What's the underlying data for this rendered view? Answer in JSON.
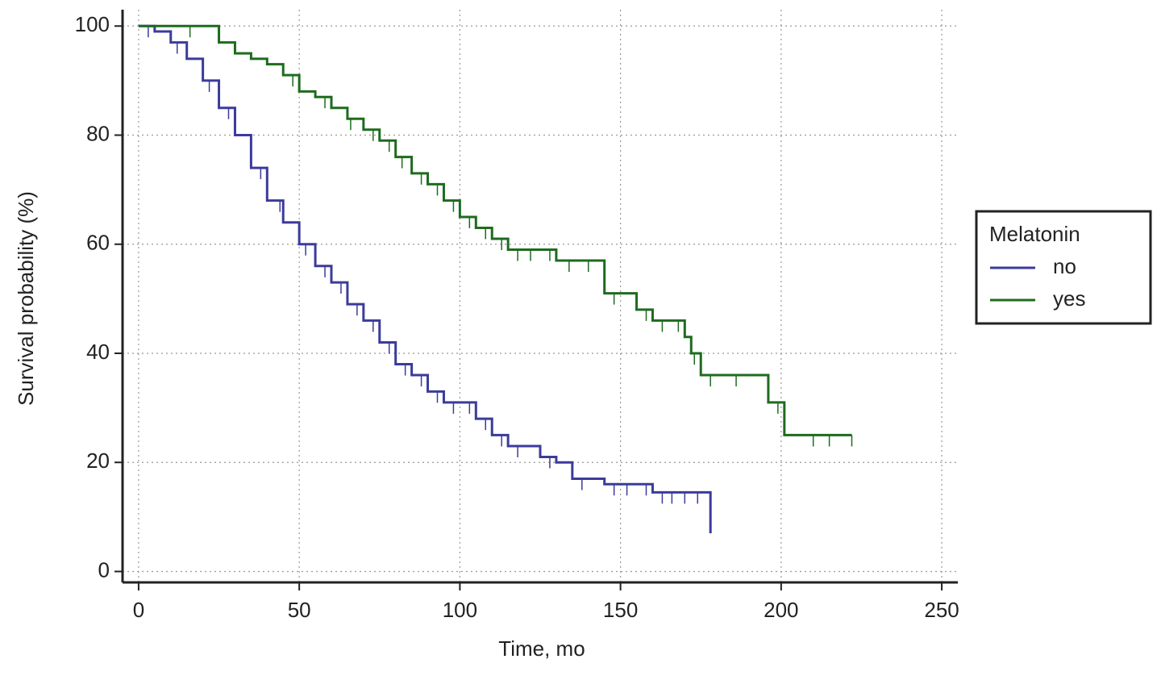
{
  "chart_data": {
    "type": "step",
    "x_label": "Time, mo",
    "y_label": "Survival probability (%)",
    "legend_title": "Melatonin",
    "legend_position": "right",
    "xlim": [
      -5,
      255
    ],
    "ylim": [
      -2,
      103
    ],
    "xticks": [
      0,
      50,
      100,
      150,
      200,
      250
    ],
    "yticks": [
      0,
      20,
      40,
      60,
      80,
      100
    ],
    "grid": true,
    "series": [
      {
        "name": "no",
        "color": "#3b3b9c",
        "x": [
          0,
          5,
          10,
          15,
          20,
          25,
          30,
          35,
          40,
          45,
          50,
          55,
          60,
          65,
          70,
          75,
          80,
          85,
          90,
          95,
          105,
          110,
          115,
          125,
          130,
          135,
          145,
          160,
          178
        ],
        "values": [
          100,
          99,
          97,
          94,
          90,
          85,
          80,
          74,
          68,
          64,
          60,
          56,
          53,
          49,
          46,
          42,
          38,
          36,
          33,
          31,
          28,
          25,
          23,
          21,
          20,
          17,
          16,
          14.5,
          7
        ],
        "censored": [
          3,
          12,
          22,
          28,
          38,
          44,
          52,
          58,
          63,
          68,
          73,
          78,
          83,
          88,
          93,
          98,
          103,
          108,
          113,
          118,
          128,
          138,
          148,
          152,
          158,
          163,
          166,
          170,
          174
        ]
      },
      {
        "name": "yes",
        "color": "#1e6b1e",
        "x": [
          0,
          20,
          25,
          30,
          35,
          40,
          45,
          50,
          55,
          60,
          65,
          70,
          75,
          80,
          85,
          90,
          95,
          100,
          105,
          110,
          115,
          130,
          145,
          155,
          160,
          170,
          172,
          175,
          196,
          201,
          222
        ],
        "values": [
          100,
          100,
          97,
          95,
          94,
          93,
          91,
          88,
          87,
          85,
          83,
          81,
          79,
          76,
          73,
          71,
          68,
          65,
          63,
          61,
          59,
          57,
          51,
          48,
          46,
          43,
          40,
          36,
          31,
          25,
          25
        ],
        "censored": [
          16,
          48,
          58,
          66,
          73,
          78,
          82,
          88,
          93,
          98,
          103,
          108,
          113,
          118,
          122,
          128,
          134,
          140,
          148,
          158,
          163,
          168,
          173,
          178,
          186,
          199,
          210,
          215,
          222
        ]
      }
    ]
  }
}
